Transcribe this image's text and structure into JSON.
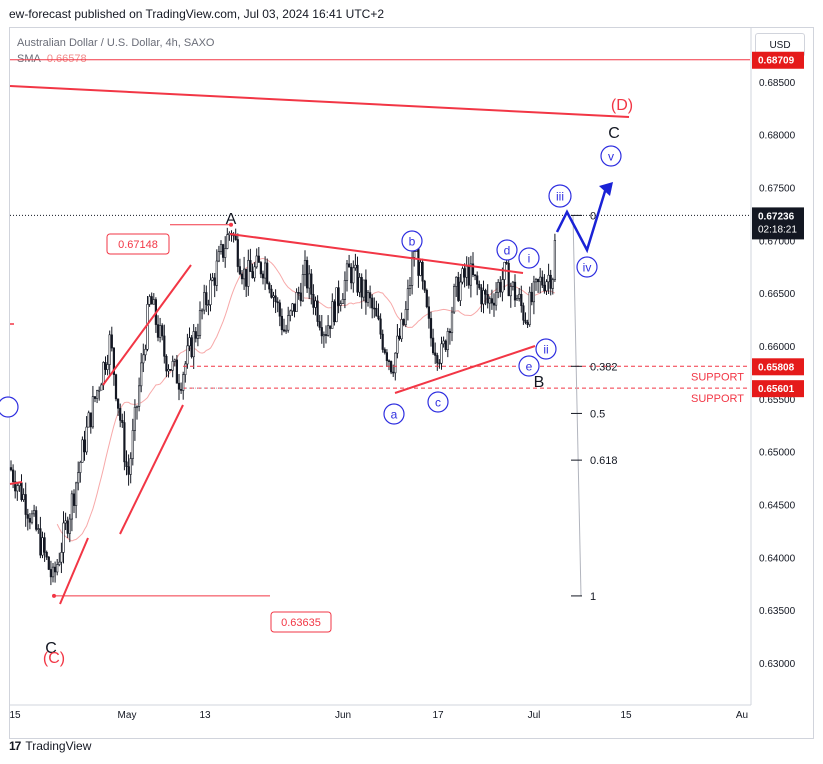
{
  "header": {
    "caption": "ew-forecast published on TradingView.com, Jul 03, 2024 16:41 UTC+2"
  },
  "symbol": {
    "title": "Australian Dollar / U.S. Dollar, 4h, SAXO",
    "sma_label": "SMA",
    "sma_value": "0.66578"
  },
  "currency_button": "USD",
  "footer": {
    "brand": "TradingView",
    "logo_glyph": "17"
  },
  "colors": {
    "up": "#131722",
    "down": "#131722",
    "wave_red": "#f23645",
    "sma": "#f7a9a9",
    "projection": "#1a22d6",
    "label_blue": "#2f2fe0"
  },
  "chart_data": {
    "type": "candlestick",
    "ylim": [
      0.6265,
      0.69
    ],
    "y_ticks": [
      "0.68500",
      "0.68000",
      "0.67500",
      "0.67000",
      "0.66500",
      "0.66000",
      "0.65500",
      "0.65000",
      "0.64500",
      "0.64000",
      "0.63500",
      "0.63000"
    ],
    "x_ticks": [
      "15",
      "May",
      "13",
      "Jun",
      "17",
      "Jul",
      "15",
      "Au"
    ],
    "price_tags": [
      {
        "text": "0.68709",
        "value": 0.68709,
        "style": "red"
      },
      {
        "text": "0.67236",
        "value": 0.67236,
        "style": "dark",
        "countdown": "02:18:21"
      },
      {
        "text": "0.65808",
        "value": 0.65808,
        "style": "red"
      },
      {
        "text": "0.65601",
        "value": 0.65601,
        "style": "red"
      }
    ],
    "support_labels": [
      {
        "text": "SUPPORT",
        "value": 0.65808
      },
      {
        "text": "SUPPORT",
        "value": 0.65601
      }
    ],
    "level_boxes": [
      {
        "text": "0.67148",
        "value": 0.67148
      },
      {
        "text": "0.63635",
        "value": 0.63635
      }
    ],
    "fib_levels": [
      {
        "label": "0",
        "value": 0.67236
      },
      {
        "label": "0.382",
        "value": 0.65808
      },
      {
        "label": "0.5",
        "value": 0.65362
      },
      {
        "label": "0.618",
        "value": 0.6492
      },
      {
        "label": "1",
        "value": 0.63635
      }
    ],
    "wave_labels": [
      {
        "text": "(D)",
        "style": "red-big"
      },
      {
        "text": "C",
        "style": "black"
      },
      {
        "text": "A",
        "style": "black"
      },
      {
        "text": "B",
        "style": "black"
      },
      {
        "text": "C",
        "style": "black"
      },
      {
        "text": "(C)",
        "style": "red-big"
      },
      {
        "text": "a",
        "style": "circle"
      },
      {
        "text": "b",
        "style": "circle"
      },
      {
        "text": "c",
        "style": "circle"
      },
      {
        "text": "d",
        "style": "circle"
      },
      {
        "text": "e",
        "style": "circle"
      },
      {
        "text": "i",
        "style": "circle"
      },
      {
        "text": "ii",
        "style": "circle"
      },
      {
        "text": "iii",
        "style": "circle"
      },
      {
        "text": "iv",
        "style": "circle"
      },
      {
        "text": "v",
        "style": "circle"
      }
    ]
  }
}
